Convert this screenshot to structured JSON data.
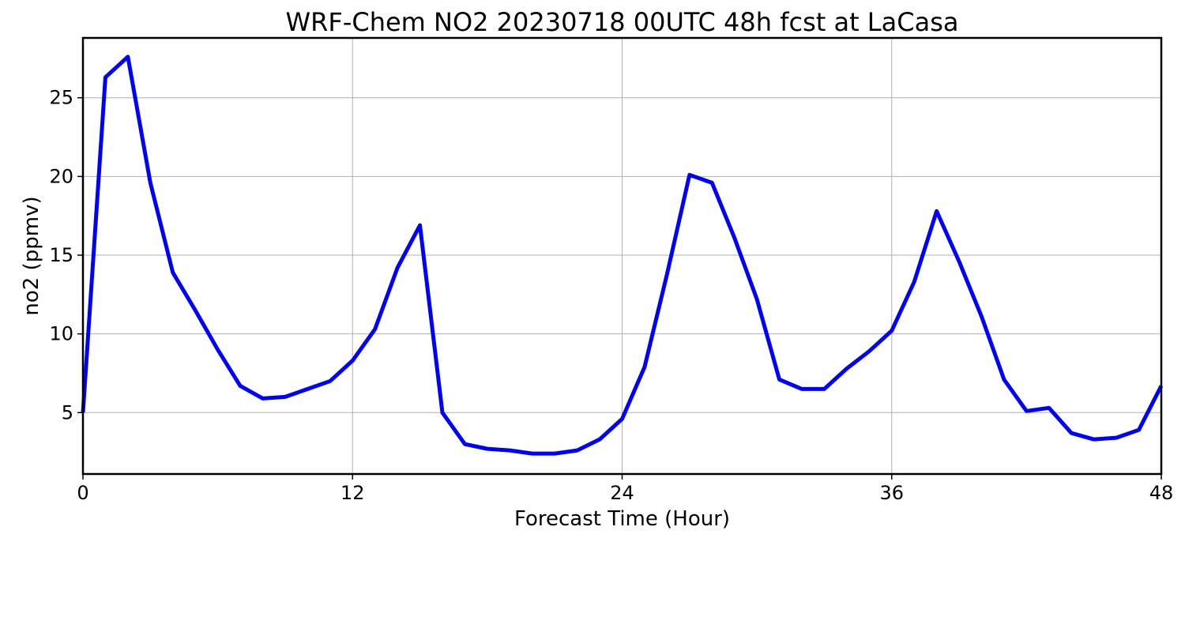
{
  "chart_data": {
    "type": "line",
    "title": "WRF-Chem NO2  20230718 00UTC 48h fcst at LaCasa",
    "xlabel": "Forecast Time (Hour)",
    "ylabel": "no2  (ppmv)",
    "xlim": [
      0,
      48
    ],
    "ylim": [
      1.1,
      28.8
    ],
    "xticks": [
      0,
      12,
      24,
      36,
      48
    ],
    "yticks": [
      5,
      10,
      15,
      20,
      25
    ],
    "grid": true,
    "line_color": "#0000ff",
    "x": [
      0,
      1,
      2,
      3,
      4,
      5,
      6,
      7,
      8,
      9,
      10,
      11,
      12,
      13,
      14,
      15,
      16,
      17,
      18,
      19,
      20,
      21,
      22,
      23,
      24,
      25,
      26,
      27,
      28,
      29,
      30,
      31,
      32,
      33,
      34,
      35,
      36,
      37,
      38,
      39,
      40,
      41,
      42,
      43,
      44,
      45,
      46,
      47,
      48
    ],
    "series": [
      {
        "values": [
          5.0,
          26.3,
          27.6,
          19.6,
          13.9,
          11.5,
          9.0,
          6.7,
          5.9,
          6.0,
          6.5,
          7.0,
          8.3,
          10.3,
          14.2,
          16.9,
          5.0,
          3.0,
          2.7,
          2.6,
          2.4,
          2.4,
          2.6,
          3.3,
          4.6,
          7.9,
          13.8,
          20.1,
          19.6,
          16.1,
          12.2,
          7.1,
          6.5,
          6.5,
          7.8,
          8.9,
          10.2,
          13.3,
          17.8,
          14.6,
          11.1,
          7.1,
          5.1,
          5.3,
          3.7,
          3.3,
          3.4,
          3.9,
          6.7
        ]
      }
    ]
  }
}
